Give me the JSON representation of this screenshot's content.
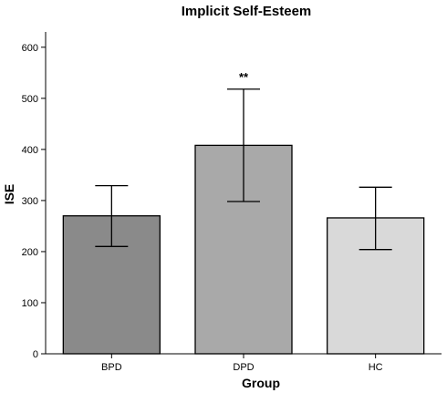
{
  "chart_data": {
    "type": "bar",
    "title": "Implicit Self-Esteem",
    "xlabel": "Group",
    "ylabel": "ISE",
    "categories": [
      "BPD",
      "DPD",
      "HC"
    ],
    "values": [
      270,
      408,
      266
    ],
    "error_low": [
      210,
      298,
      204
    ],
    "error_high": [
      329,
      518,
      326
    ],
    "bar_colors": [
      "#8a8a8a",
      "#a9a9a9",
      "#d9d9d9"
    ],
    "ylim": [
      0,
      630
    ],
    "yticks": [
      0,
      100,
      200,
      300,
      400,
      500,
      600
    ],
    "annotations": [
      {
        "category": "DPD",
        "text": "**"
      }
    ],
    "grid": false,
    "legend": "none"
  }
}
